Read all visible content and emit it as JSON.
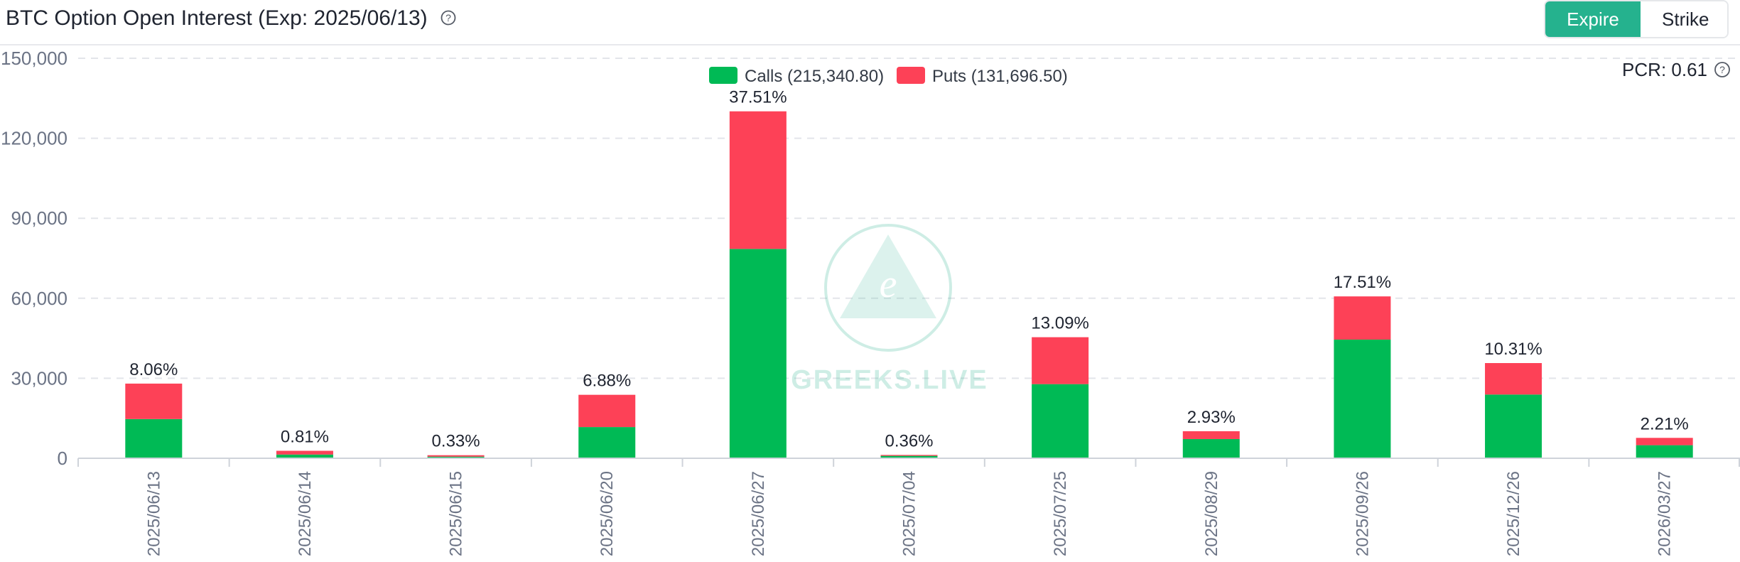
{
  "header": {
    "title": "BTC Option Open Interest (Exp: 2025/06/13)",
    "help_icon": "question-circle-icon",
    "toggle": {
      "expire_label": "Expire",
      "strike_label": "Strike",
      "active": "Expire"
    }
  },
  "pcr_label": "PCR: 0.61",
  "watermark_text": "GREEKS.LIVE",
  "colors": {
    "calls": "#00ba55",
    "puts": "#fd4157",
    "accent": "#25b28e"
  },
  "chart_data": {
    "type": "bar",
    "stacked": true,
    "title": "BTC Option Open Interest (Exp: 2025/06/13)",
    "xlabel": "",
    "ylabel": "",
    "ylim": [
      0,
      150000
    ],
    "yticks": [
      0,
      30000,
      60000,
      90000,
      120000,
      150000
    ],
    "ytick_labels": [
      "0",
      "30,000",
      "60,000",
      "90,000",
      "120,000",
      "150,000"
    ],
    "grid": true,
    "legend_position": "top-center",
    "categories": [
      "2025/06/13",
      "2025/06/14",
      "2025/06/15",
      "2025/06/20",
      "2025/06/27",
      "2025/07/04",
      "2025/07/25",
      "2025/08/29",
      "2025/09/26",
      "2025/12/26",
      "2026/03/27"
    ],
    "series": [
      {
        "name": "Calls",
        "legend_label": "Calls (215,340.80)",
        "total": 215340.8,
        "color": "#00ba55",
        "values": [
          14700,
          1400,
          600,
          11700,
          78500,
          900,
          27800,
          7200,
          44500,
          23900,
          4900
        ]
      },
      {
        "name": "Puts",
        "legend_label": "Puts (131,696.50)",
        "total": 131696.5,
        "color": "#fd4157",
        "values": [
          13300,
          1400,
          550,
          12100,
          51600,
          350,
          17600,
          2950,
          16200,
          11800,
          2750
        ]
      }
    ],
    "bar_labels": [
      "8.06%",
      "0.81%",
      "0.33%",
      "6.88%",
      "37.51%",
      "0.36%",
      "13.09%",
      "2.93%",
      "17.51%",
      "10.31%",
      "2.21%"
    ]
  }
}
